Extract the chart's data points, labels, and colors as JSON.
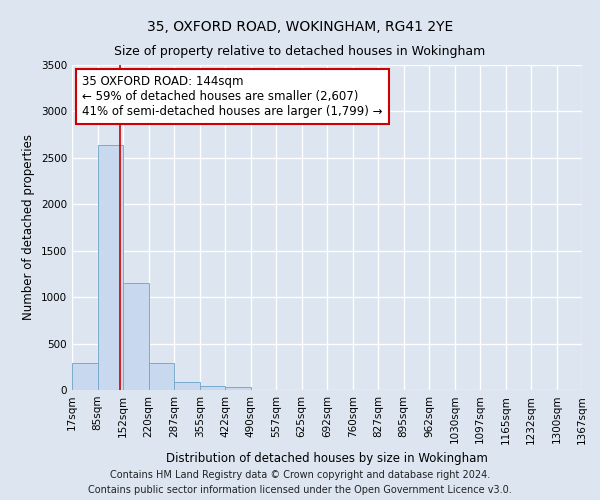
{
  "title": "35, OXFORD ROAD, WOKINGHAM, RG41 2YE",
  "subtitle": "Size of property relative to detached houses in Wokingham",
  "xlabel": "Distribution of detached houses by size in Wokingham",
  "ylabel": "Number of detached properties",
  "bin_labels": [
    "17sqm",
    "85sqm",
    "152sqm",
    "220sqm",
    "287sqm",
    "355sqm",
    "422sqm",
    "490sqm",
    "557sqm",
    "625sqm",
    "692sqm",
    "760sqm",
    "827sqm",
    "895sqm",
    "962sqm",
    "1030sqm",
    "1097sqm",
    "1165sqm",
    "1232sqm",
    "1300sqm",
    "1367sqm"
  ],
  "bin_edges": [
    17,
    85,
    152,
    220,
    287,
    355,
    422,
    490,
    557,
    625,
    692,
    760,
    827,
    895,
    962,
    1030,
    1097,
    1165,
    1232,
    1300,
    1367
  ],
  "bar_heights": [
    295,
    2635,
    1150,
    295,
    90,
    45,
    30,
    0,
    0,
    0,
    0,
    0,
    0,
    0,
    0,
    0,
    0,
    0,
    0,
    0
  ],
  "bar_color": "#c8d8ee",
  "bar_edge_color": "#7aabcc",
  "property_size": 144,
  "property_line_color": "#cc0000",
  "annotation_line1": "35 OXFORD ROAD: 144sqm",
  "annotation_line2": "← 59% of detached houses are smaller (2,607)",
  "annotation_line3": "41% of semi-detached houses are larger (1,799) →",
  "annotation_box_color": "#ffffff",
  "annotation_box_edge": "#cc0000",
  "ylim": [
    0,
    3500
  ],
  "yticks": [
    0,
    500,
    1000,
    1500,
    2000,
    2500,
    3000,
    3500
  ],
  "footer_line1": "Contains HM Land Registry data © Crown copyright and database right 2024.",
  "footer_line2": "Contains public sector information licensed under the Open Government Licence v3.0.",
  "bg_color": "#dde6f0",
  "plot_bg_color": "#dde6f0",
  "grid_color": "#ffffff",
  "title_fontsize": 10,
  "subtitle_fontsize": 9,
  "axis_label_fontsize": 8.5,
  "tick_fontsize": 7.5,
  "annotation_fontsize": 8.5,
  "footer_fontsize": 7
}
